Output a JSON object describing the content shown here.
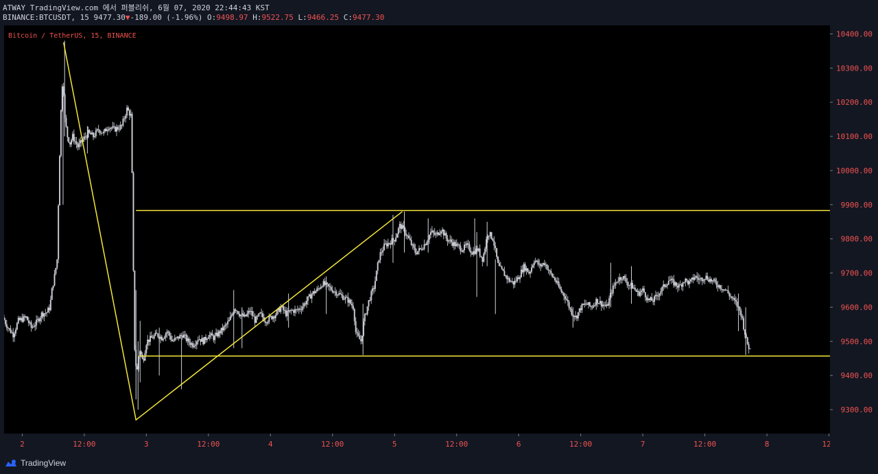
{
  "header": {
    "line1": "ATWAY TradingView.com 에서 퍼블리쉬, 6월 07, 2020 22:44:43 KST",
    "symbol": "BINANCE:BTCUSDT, 15",
    "last": "9477.30",
    "change": "-189.00 (-1.96%)",
    "o_label": "O:",
    "o": "9498.97",
    "h_label": "H:",
    "h": "9522.75",
    "l_label": "L:",
    "l": "9466.25",
    "c_label": "C:",
    "c": "9477.30"
  },
  "chart_data": {
    "type": "candlestick",
    "title": "Bitcoin / TetherUS, 15, BINANCE",
    "ylim": [
      9230,
      10425
    ],
    "y_ticks": [
      9300,
      9400,
      9500,
      9600,
      9700,
      9800,
      9900,
      10000,
      10100,
      10200,
      10300,
      10400
    ],
    "y_tick_labels": [
      "9300.00",
      "9400.00",
      "9500.00",
      "9600.00",
      "9700.00",
      "9800.00",
      "9900.00",
      "10000.00",
      "10100.00",
      "10200.00",
      "10300.00",
      "10400.00"
    ],
    "x_tick_labels": [
      "2",
      "12:00",
      "3",
      "12:00",
      "4",
      "12:00",
      "5",
      "12:00",
      "6",
      "12:00",
      "7",
      "12:00",
      "8",
      "12:"
    ],
    "x_ticks_hours": [
      0,
      12,
      24,
      36,
      48,
      60,
      72,
      84,
      96,
      108,
      120,
      132,
      144,
      156
    ],
    "xlim_hours": [
      -3.5,
      156.2
    ],
    "price_path": [
      [
        -3.5,
        9570
      ],
      [
        -2.5,
        9540
      ],
      [
        -1.5,
        9520
      ],
      [
        -0.5,
        9560
      ],
      [
        1,
        9570
      ],
      [
        2,
        9540
      ],
      [
        3,
        9555
      ],
      [
        4,
        9580
      ],
      [
        5,
        9585
      ],
      [
        5.6,
        9600
      ],
      [
        6,
        9650
      ],
      [
        6.6,
        9700
      ],
      [
        7,
        9740
      ],
      [
        7.4,
        10000
      ],
      [
        7.8,
        10200
      ],
      [
        8.1,
        10280
      ],
      [
        8.5,
        10150
      ],
      [
        9,
        10100
      ],
      [
        9.5,
        10080
      ],
      [
        10,
        10100
      ],
      [
        11,
        10070
      ],
      [
        12,
        10090
      ],
      [
        13,
        10110
      ],
      [
        14,
        10100
      ],
      [
        15,
        10120
      ],
      [
        16,
        10110
      ],
      [
        17,
        10130
      ],
      [
        18,
        10120
      ],
      [
        19.5,
        10130
      ],
      [
        20.5,
        10180
      ],
      [
        21.3,
        10160
      ],
      [
        21.6,
        9900
      ],
      [
        21.9,
        9500
      ],
      [
        22.4,
        9400
      ],
      [
        22.9,
        9480
      ],
      [
        23.6,
        9440
      ],
      [
        24.3,
        9500
      ],
      [
        25.3,
        9510
      ],
      [
        26.3,
        9520
      ],
      [
        27.3,
        9510
      ],
      [
        28.3,
        9530
      ],
      [
        29.3,
        9500
      ],
      [
        30.3,
        9510
      ],
      [
        31.3,
        9520
      ],
      [
        32.3,
        9500
      ],
      [
        33.3,
        9490
      ],
      [
        34.3,
        9510
      ],
      [
        35.3,
        9500
      ],
      [
        36.3,
        9520
      ],
      [
        37.3,
        9510
      ],
      [
        38.3,
        9525
      ],
      [
        39.3,
        9540
      ],
      [
        40.3,
        9560
      ],
      [
        41.3,
        9600
      ],
      [
        42.3,
        9580
      ],
      [
        43.3,
        9570
      ],
      [
        44.3,
        9590
      ],
      [
        45.3,
        9560
      ],
      [
        46.3,
        9580
      ],
      [
        47.3,
        9560
      ],
      [
        48.3,
        9570
      ],
      [
        49.3,
        9580
      ],
      [
        50.3,
        9600
      ],
      [
        51.3,
        9580
      ],
      [
        52.3,
        9590
      ],
      [
        53.3,
        9590
      ],
      [
        54.3,
        9600
      ],
      [
        55.3,
        9620
      ],
      [
        56.3,
        9640
      ],
      [
        57.3,
        9650
      ],
      [
        58.3,
        9670
      ],
      [
        59.3,
        9660
      ],
      [
        60.3,
        9650
      ],
      [
        61.3,
        9640
      ],
      [
        62.3,
        9630
      ],
      [
        63.3,
        9620
      ],
      [
        64.3,
        9600
      ],
      [
        64.8,
        9520
      ],
      [
        65.8,
        9500
      ],
      [
        66.3,
        9560
      ],
      [
        67.3,
        9620
      ],
      [
        68.3,
        9660
      ],
      [
        69.3,
        9750
      ],
      [
        70.3,
        9780
      ],
      [
        71.3,
        9790
      ],
      [
        72.3,
        9800
      ],
      [
        73.3,
        9840
      ],
      [
        74.3,
        9820
      ],
      [
        75.3,
        9790
      ],
      [
        76.3,
        9760
      ],
      [
        77.3,
        9770
      ],
      [
        78.3,
        9790
      ],
      [
        79.3,
        9820
      ],
      [
        80.3,
        9810
      ],
      [
        81.3,
        9830
      ],
      [
        82.3,
        9800
      ],
      [
        83.3,
        9790
      ],
      [
        84.3,
        9780
      ],
      [
        85.3,
        9770
      ],
      [
        86.3,
        9780
      ],
      [
        87.3,
        9760
      ],
      [
        88.3,
        9770
      ],
      [
        89.3,
        9740
      ],
      [
        90.3,
        9820
      ],
      [
        91.3,
        9800
      ],
      [
        92.3,
        9720
      ],
      [
        93.3,
        9700
      ],
      [
        94.3,
        9680
      ],
      [
        95.3,
        9670
      ],
      [
        96.3,
        9690
      ],
      [
        97.3,
        9720
      ],
      [
        98.3,
        9700
      ],
      [
        99.3,
        9740
      ],
      [
        100.3,
        9720
      ],
      [
        101.3,
        9730
      ],
      [
        102.3,
        9700
      ],
      [
        103.3,
        9680
      ],
      [
        104.3,
        9650
      ],
      [
        105.3,
        9630
      ],
      [
        106.3,
        9590
      ],
      [
        107.3,
        9570
      ],
      [
        108.3,
        9600
      ],
      [
        109.3,
        9610
      ],
      [
        110.3,
        9600
      ],
      [
        111.3,
        9620
      ],
      [
        112.3,
        9610
      ],
      [
        113.3,
        9600
      ],
      [
        114.3,
        9650
      ],
      [
        115.3,
        9680
      ],
      [
        116.3,
        9690
      ],
      [
        117.3,
        9670
      ],
      [
        118.3,
        9660
      ],
      [
        119.3,
        9640
      ],
      [
        120.3,
        9650
      ],
      [
        121.3,
        9620
      ],
      [
        122.3,
        9620
      ],
      [
        123.3,
        9640
      ],
      [
        124.3,
        9660
      ],
      [
        125.3,
        9680
      ],
      [
        126.3,
        9670
      ],
      [
        127.3,
        9660
      ],
      [
        128.3,
        9680
      ],
      [
        129.3,
        9670
      ],
      [
        130.3,
        9690
      ],
      [
        131.3,
        9680
      ],
      [
        132.3,
        9690
      ],
      [
        133.3,
        9680
      ],
      [
        134.3,
        9670
      ],
      [
        135.3,
        9660
      ],
      [
        136.3,
        9650
      ],
      [
        137.3,
        9630
      ],
      [
        138.3,
        9610
      ],
      [
        139.3,
        9580
      ],
      [
        139.8,
        9540
      ],
      [
        140.3,
        9500
      ],
      [
        140.9,
        9477
      ]
    ],
    "spikes": [
      [
        7.9,
        10240,
        9900
      ],
      [
        8.2,
        10380,
        10100
      ],
      [
        12.6,
        10130,
        10050
      ],
      [
        22.0,
        9650,
        9330
      ],
      [
        22.4,
        9500,
        9300
      ],
      [
        22.8,
        9560,
        9380
      ],
      [
        26.5,
        9540,
        9400
      ],
      [
        30.8,
        9510,
        9360
      ],
      [
        40.9,
        9650,
        9480
      ],
      [
        42.5,
        9600,
        9480
      ],
      [
        51.5,
        9640,
        9540
      ],
      [
        58.8,
        9690,
        9580
      ],
      [
        65.9,
        9610,
        9460
      ],
      [
        71.7,
        9870,
        9730
      ],
      [
        73.9,
        9880,
        9760
      ],
      [
        78.5,
        9860,
        9760
      ],
      [
        87.5,
        9860,
        9760
      ],
      [
        87.9,
        9820,
        9630
      ],
      [
        89.9,
        9850,
        9720
      ],
      [
        91.5,
        9740,
        9580
      ],
      [
        106.5,
        9600,
        9540
      ],
      [
        113.8,
        9730,
        9600
      ],
      [
        117.8,
        9720,
        9610
      ],
      [
        138.5,
        9640,
        9530
      ],
      [
        139.9,
        9600,
        9460
      ]
    ],
    "drawings": {
      "color": "#f5e73b",
      "zigzag_points": [
        [
          8.0,
          10375
        ],
        [
          22.0,
          9270
        ],
        [
          73.5,
          9880
        ]
      ],
      "resistance": {
        "x_start": 22.0,
        "y": 9883
      },
      "support": {
        "x_start": 22.6,
        "y": 9457
      }
    },
    "grid": false,
    "background": "#000000",
    "candle_color": "#d1d4dc",
    "axis_text_color": "#f05350"
  },
  "footer": {
    "brand": "TradingView"
  },
  "colors": {
    "accent": "#f05350",
    "drawing": "#f5e73b"
  }
}
